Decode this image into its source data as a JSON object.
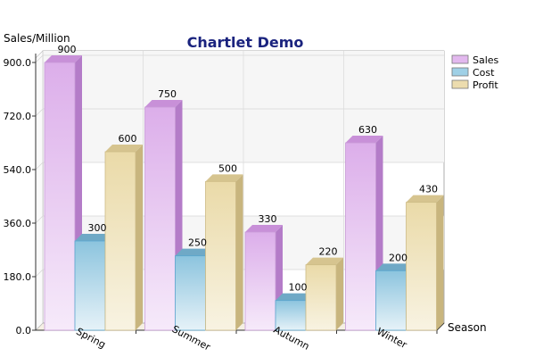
{
  "chart_data": {
    "type": "bar",
    "title": "Chartlet Demo",
    "xlabel": "Season",
    "ylabel": "Sales/Million",
    "categories": [
      "Spring",
      "Summer",
      "Autumn",
      "Winter"
    ],
    "series": [
      {
        "name": "Sales",
        "values": [
          900,
          750,
          330,
          630
        ],
        "color": "#e2b8ee"
      },
      {
        "name": "Cost",
        "values": [
          300,
          250,
          100,
          200
        ],
        "color": "#9fd0e6"
      },
      {
        "name": "Profit",
        "values": [
          600,
          500,
          220,
          430
        ],
        "color": "#ecdcae"
      }
    ],
    "ylim": [
      0,
      900
    ],
    "yticks": [
      "0.0",
      "180.0",
      "360.0",
      "540.0",
      "720.0",
      "900.0"
    ],
    "grid": true,
    "legend": "top-right",
    "style": "3d"
  }
}
